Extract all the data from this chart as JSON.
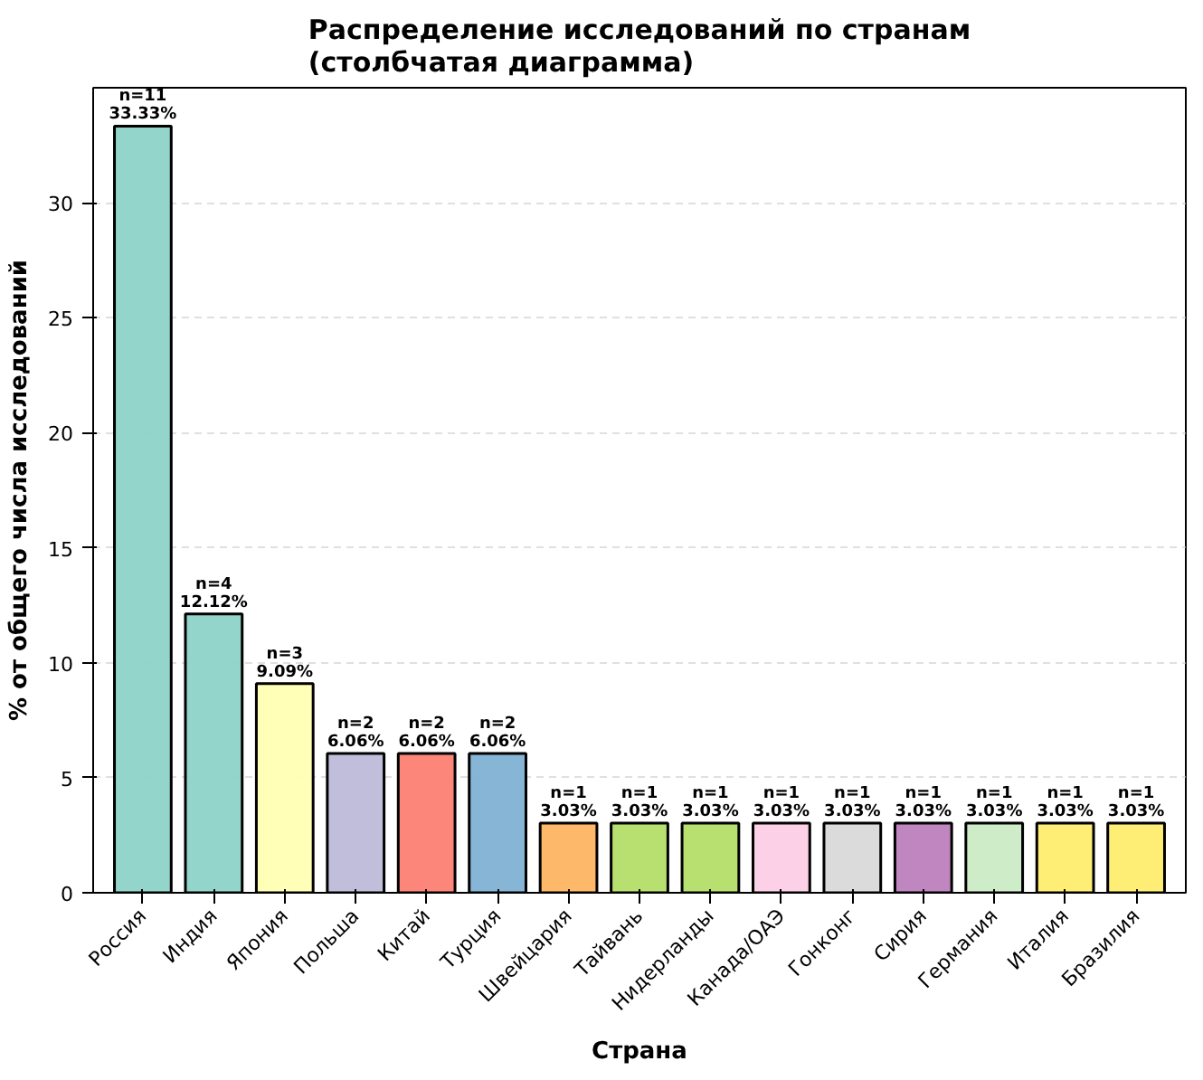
{
  "chart_data": {
    "type": "bar",
    "title": "Распределение исследований по странам\n(столбчатая диаграмма)",
    "xlabel": "Страна",
    "ylabel": "% от общего числа исследований",
    "categories": [
      "Россия",
      "Индия",
      "Япония",
      "Польша",
      "Китай",
      "Турция",
      "Швейцария",
      "Тайвань",
      "Нидерланды",
      "Канада/ОАЭ",
      "Гонконг",
      "Сирия",
      "Германия",
      "Италия",
      "Бразилия"
    ],
    "values": [
      33.33,
      12.12,
      9.09,
      6.06,
      6.06,
      6.06,
      3.03,
      3.03,
      3.03,
      3.03,
      3.03,
      3.03,
      3.03,
      3.03,
      3.03
    ],
    "colors": [
      "#8dd3c7",
      "#8dd3c7",
      "#ffffb3",
      "#bebada",
      "#fb8072",
      "#80b1d3",
      "#fdb462",
      "#b3de69",
      "#b3de69",
      "#fccde5",
      "#d9d9d9",
      "#bc80bd",
      "#ccebc5",
      "#ffed6f",
      "#ffed6f"
    ],
    "value_labels": [
      "n=11\n33.33%",
      "n=4\n12.12%",
      "n=3\n9.09%",
      "n=2\n6.06%",
      "n=2\n6.06%",
      "n=2\n6.06%",
      "n=1\n3.03%",
      "n=1\n3.03%",
      "n=1\n3.03%",
      "n=1\n3.03%",
      "n=1\n3.03%",
      "n=1\n3.03%",
      "n=1\n3.03%",
      "n=1\n3.03%",
      "n=1\n3.03%"
    ],
    "ylim": [
      0,
      35
    ],
    "yticks": [
      0,
      5,
      10,
      15,
      20,
      25,
      30
    ],
    "grid": "y"
  }
}
